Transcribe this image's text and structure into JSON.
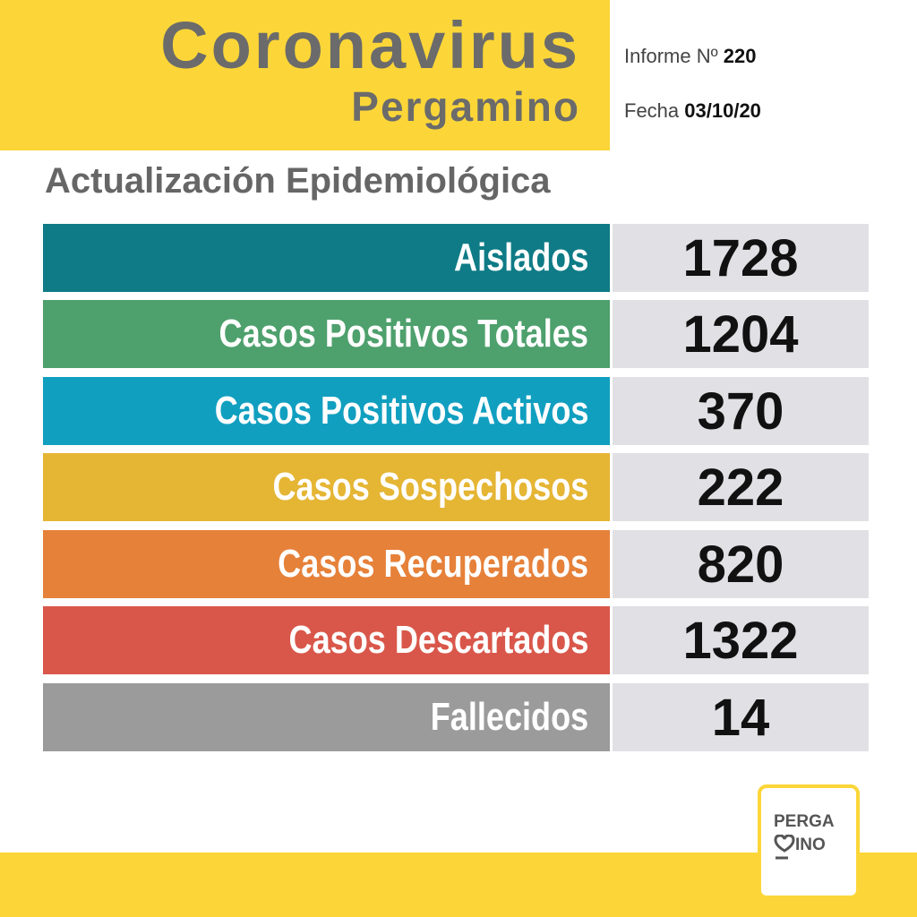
{
  "header": {
    "title": "Coronavirus",
    "subtitle": "Pergamino",
    "report_label": "Informe Nº",
    "report_number": "220",
    "date_label": "Fecha",
    "date": "03/10/20"
  },
  "section_title": "Actualización Epidemiológica",
  "rows": [
    {
      "label": "Aislados",
      "value": "1728"
    },
    {
      "label": "Casos Positivos Totales",
      "value": "1204"
    },
    {
      "label": "Casos Positivos Activos",
      "value": "370"
    },
    {
      "label": "Casos Sospechosos",
      "value": "222"
    },
    {
      "label": "Casos Recuperados",
      "value": "820"
    },
    {
      "label": "Casos Descartados",
      "value": "1322"
    },
    {
      "label": "Fallecidos",
      "value": "14"
    }
  ],
  "logo": {
    "line1": "PERGA",
    "line2": "INO"
  }
}
